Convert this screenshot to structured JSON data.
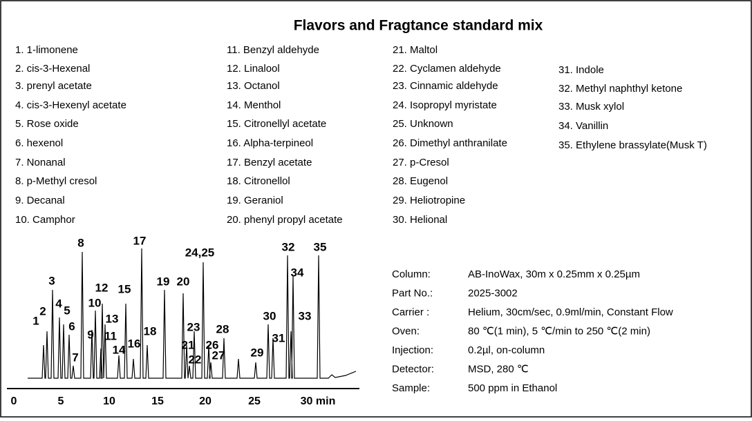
{
  "title": "Flavors and Fragtance standard mix",
  "compounds": [
    "1. 1-limonene",
    "2. cis-3-Hexenal",
    "3. prenyl acetate",
    "4. cis-3-Hexenyl acetate",
    "5. Rose oxide",
    "6. hexenol",
    "7. Nonanal",
    "8. p-Methyl cresol",
    "9. Decanal",
    "10. Camphor",
    "11. Benzyl aldehyde",
    "12. Linalool",
    "13. Octanol",
    "14. Menthol",
    "15. Citronellyl acetate",
    "16. Alpha-terpineol",
    "17. Benzyl acetate",
    "18. Citronellol",
    "19. Geraniol",
    "20. phenyl propyl acetate",
    "21. Maltol",
    "22. Cyclamen aldehyde",
    "23. Cinnamic aldehyde",
    "24. Isopropyl myristate",
    "25. Unknown",
    "26. Dimethyl anthranilate",
    "27. p-Cresol",
    "28. Eugenol",
    "29. Heliotropine",
    "30. Helional",
    "31. Indole",
    "32. Methyl naphthyl ketone",
    "33. Musk xylol",
    "34. Vanillin",
    "35. Ethylene brassylate(Musk T)"
  ],
  "peak_labels": [
    "1",
    "2",
    "3",
    "4",
    "5",
    "6",
    "7",
    "8",
    "9",
    "10",
    "11",
    "12",
    "13",
    "14",
    "15",
    "16",
    "17",
    "18",
    "19",
    "20",
    "21",
    "22",
    "23",
    "24,25",
    "26",
    "27",
    "28",
    "29",
    "30",
    "31",
    "32",
    "33",
    "34",
    "35"
  ],
  "x_axis_labels": [
    "0",
    "5",
    "10",
    "15",
    "20",
    "25",
    "30 min"
  ],
  "conditions": [
    {
      "label": "Column:",
      "value": "AB-InoWax, 30m x 0.25mm x 0.25µm"
    },
    {
      "label": "Part No.:",
      "value": "2025-3002"
    },
    {
      "label": "Carrier :",
      "value": "Helium, 30cm/sec, 0.9ml/min, Constant Flow"
    },
    {
      "label": "Oven:",
      "value": "80 ℃(1 min), 5 ℃/min to 250 ℃(2 min)"
    },
    {
      "label": "Injection:",
      "value": "0.2µl, on-column"
    },
    {
      "label": "Detector:",
      "value": "MSD, 280 ℃"
    },
    {
      "label": "Sample:",
      "value": "500 ppm in Ethanol"
    }
  ]
}
